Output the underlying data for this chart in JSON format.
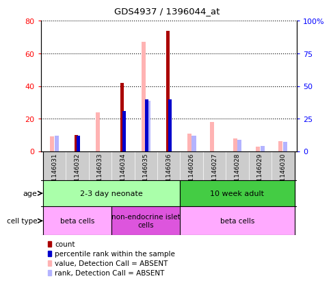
{
  "title": "GDS4937 / 1396044_at",
  "samples": [
    "GSM1146031",
    "GSM1146032",
    "GSM1146033",
    "GSM1146034",
    "GSM1146035",
    "GSM1146036",
    "GSM1146026",
    "GSM1146027",
    "GSM1146028",
    "GSM1146029",
    "GSM1146030"
  ],
  "count": [
    0,
    10,
    0,
    42,
    0,
    74,
    0,
    0,
    0,
    0,
    0
  ],
  "percentile_rank": [
    0,
    12,
    0,
    31,
    40,
    40,
    0,
    0,
    0,
    0,
    0
  ],
  "value_absent": [
    9,
    0,
    24,
    0,
    67,
    0,
    11,
    18,
    8,
    3,
    6
  ],
  "rank_absent": [
    12,
    0,
    0,
    0,
    39,
    0,
    12,
    0,
    9,
    4,
    7
  ],
  "count_color": "#aa0000",
  "rank_color": "#0000cc",
  "value_absent_color": "#ffb3b3",
  "rank_absent_color": "#b3b3ff",
  "ylim_left": [
    0,
    80
  ],
  "ylim_right": [
    0,
    100
  ],
  "yticks_left": [
    0,
    20,
    40,
    60,
    80
  ],
  "ytick_labels_left": [
    "0",
    "20",
    "40",
    "60",
    "80"
  ],
  "yticks_right_vals": [
    0,
    25,
    50,
    75,
    100
  ],
  "ytick_labels_right": [
    "0",
    "25",
    "50",
    "75",
    "100%"
  ],
  "age_groups": [
    {
      "label": "2-3 day neonate",
      "start": 0,
      "end": 5,
      "color": "#aaffaa"
    },
    {
      "label": "10 week adult",
      "start": 6,
      "end": 10,
      "color": "#44cc44"
    }
  ],
  "cell_type_groups": [
    {
      "label": "beta cells",
      "start": 0,
      "end": 2,
      "color": "#ffaaff"
    },
    {
      "label": "non-endocrine islet\ncells",
      "start": 3,
      "end": 5,
      "color": "#dd55dd"
    },
    {
      "label": "beta cells",
      "start": 6,
      "end": 10,
      "color": "#ffaaff"
    }
  ],
  "legend_items": [
    {
      "label": "count",
      "color": "#aa0000"
    },
    {
      "label": "percentile rank within the sample",
      "color": "#0000cc"
    },
    {
      "label": "value, Detection Call = ABSENT",
      "color": "#ffb3b3"
    },
    {
      "label": "rank, Detection Call = ABSENT",
      "color": "#b3b3ff"
    }
  ]
}
